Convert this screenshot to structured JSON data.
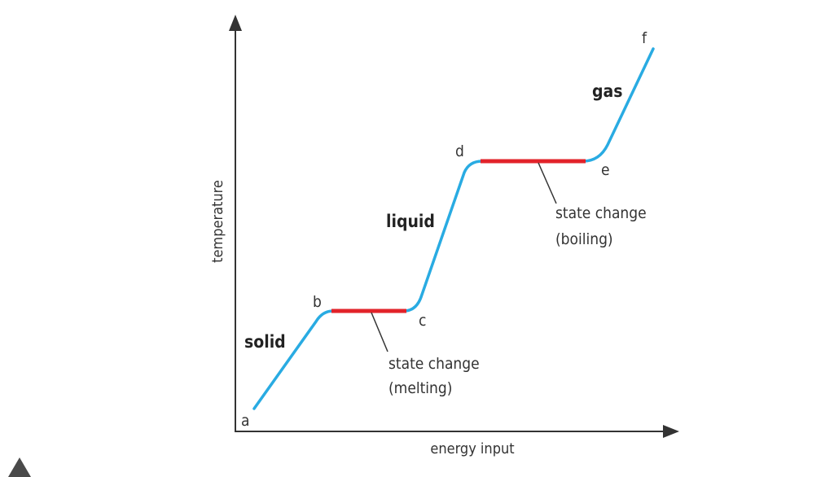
{
  "diagram": {
    "axes": {
      "y_label": "temperature",
      "x_label": "energy input"
    },
    "points": {
      "a": "a",
      "b": "b",
      "c": "c",
      "d": "d",
      "e": "e",
      "f": "f"
    },
    "phases": {
      "solid": "solid",
      "liquid": "liquid",
      "gas": "gas"
    },
    "annotations": {
      "melting": {
        "line1": "state change",
        "line2": "(melting)"
      },
      "boiling": {
        "line1": "state change",
        "line2": "(boiling)"
      }
    },
    "colors": {
      "curve": "#29abe2",
      "state_change": "#e2232a",
      "axis": "#333333"
    }
  }
}
